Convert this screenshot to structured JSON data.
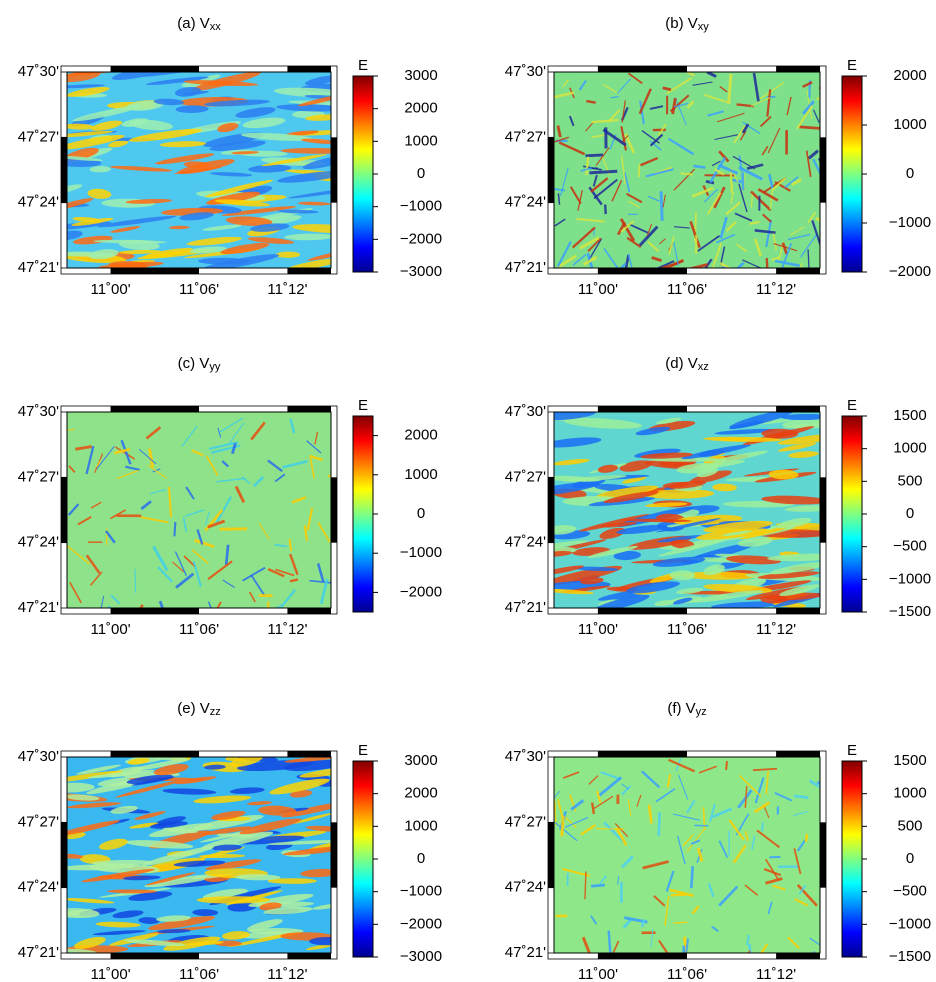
{
  "panels": [
    {
      "letter": "(a)",
      "symbol": "V",
      "subscript": "xx",
      "unit": "E",
      "colorbar_ticks": [
        "3000",
        "2000",
        "1000",
        "0",
        "−1000",
        "−2000",
        "−3000"
      ],
      "range": [
        -3000,
        3000
      ]
    },
    {
      "letter": "(b)",
      "symbol": "V",
      "subscript": "xy",
      "unit": "E",
      "colorbar_ticks": [
        "2000",
        "1000",
        "0",
        "−1000",
        "−2000"
      ],
      "range": [
        -2000,
        2000
      ]
    },
    {
      "letter": "(c)",
      "symbol": "V",
      "subscript": "yy",
      "unit": "E",
      "colorbar_ticks": [
        "2000",
        "1000",
        "0",
        "−1000",
        "−2000"
      ],
      "range": [
        -2500,
        2500
      ]
    },
    {
      "letter": "(d)",
      "symbol": "V",
      "subscript": "xz",
      "unit": "E",
      "colorbar_ticks": [
        "1500",
        "1000",
        "500",
        "0",
        "−500",
        "−1000",
        "−1500"
      ],
      "range": [
        -1500,
        1500
      ]
    },
    {
      "letter": "(e)",
      "symbol": "V",
      "subscript": "zz",
      "unit": "E",
      "colorbar_ticks": [
        "3000",
        "2000",
        "1000",
        "0",
        "−1000",
        "−2000",
        "−3000"
      ],
      "range": [
        -3000,
        3000
      ]
    },
    {
      "letter": "(f)",
      "symbol": "V",
      "subscript": "yz",
      "unit": "E",
      "colorbar_ticks": [
        "1500",
        "1000",
        "500",
        "0",
        "−500",
        "−1000",
        "−1500"
      ],
      "range": [
        -1500,
        1500
      ]
    }
  ],
  "lat_ticks": [
    "47˚30'",
    "47˚27'",
    "47˚24'",
    "47˚21'"
  ],
  "lon_ticks": [
    "11˚00'",
    "11˚06'",
    "11˚12'"
  ],
  "colormap": [
    "#000090",
    "#0000ff",
    "#0080ff",
    "#00ffff",
    "#80ff80",
    "#ffff00",
    "#ff8000",
    "#ff0000",
    "#800000"
  ]
}
